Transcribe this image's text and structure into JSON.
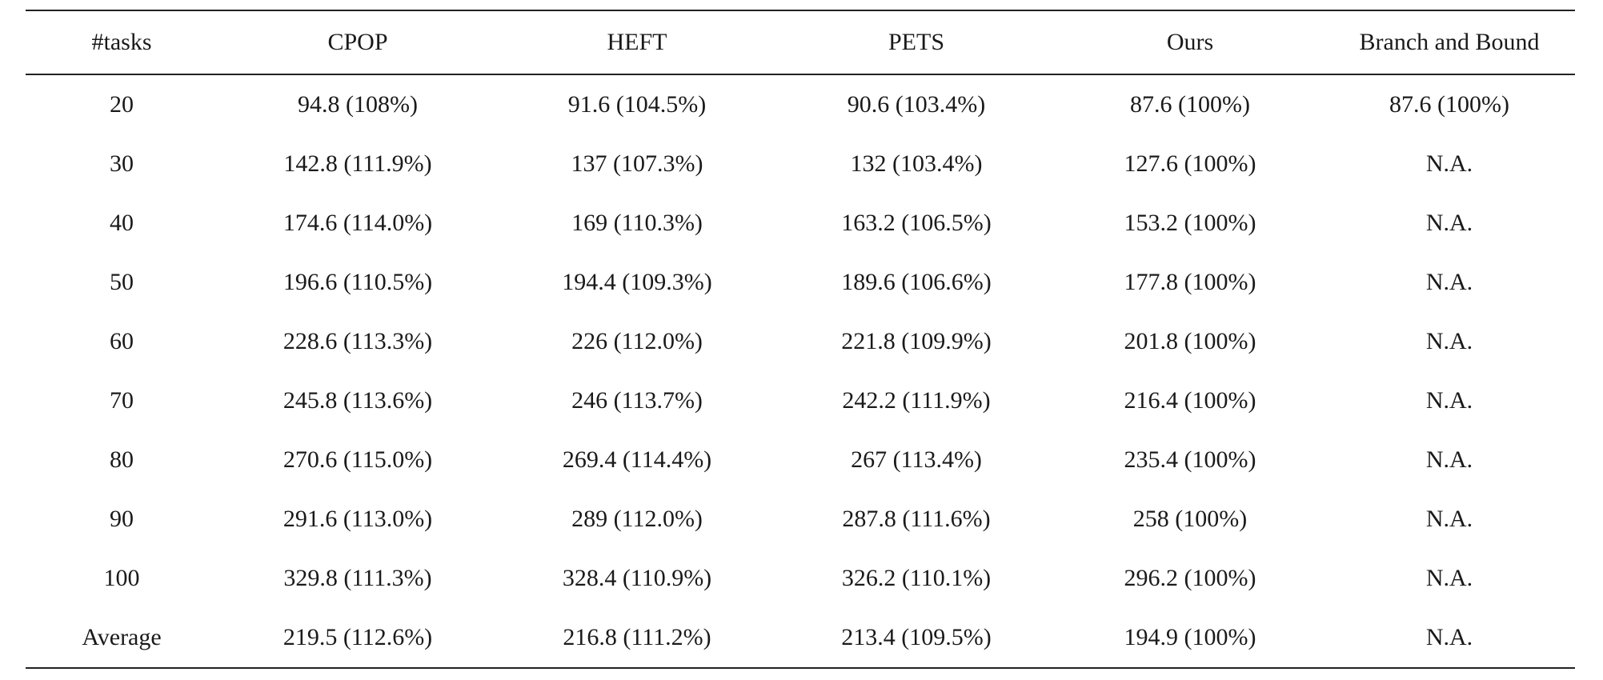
{
  "table": {
    "headers": [
      "#tasks",
      "CPOP",
      "HEFT",
      "PETS",
      "Ours",
      "Branch and Bound"
    ],
    "rows": [
      [
        "20",
        "94.8 (108%)",
        "91.6 (104.5%)",
        "90.6 (103.4%)",
        "87.6 (100%)",
        "87.6 (100%)"
      ],
      [
        "30",
        "142.8 (111.9%)",
        "137 (107.3%)",
        "132 (103.4%)",
        "127.6 (100%)",
        "N.A."
      ],
      [
        "40",
        "174.6 (114.0%)",
        "169 (110.3%)",
        "163.2 (106.5%)",
        "153.2 (100%)",
        "N.A."
      ],
      [
        "50",
        "196.6 (110.5%)",
        "194.4 (109.3%)",
        "189.6 (106.6%)",
        "177.8 (100%)",
        "N.A."
      ],
      [
        "60",
        "228.6 (113.3%)",
        "226 (112.0%)",
        "221.8 (109.9%)",
        "201.8 (100%)",
        "N.A."
      ],
      [
        "70",
        "245.8 (113.6%)",
        "246 (113.7%)",
        "242.2 (111.9%)",
        "216.4 (100%)",
        "N.A."
      ],
      [
        "80",
        "270.6 (115.0%)",
        "269.4 (114.4%)",
        "267 (113.4%)",
        "235.4 (100%)",
        "N.A."
      ],
      [
        "90",
        "291.6 (113.0%)",
        "289 (112.0%)",
        "287.8 (111.6%)",
        "258 (100%)",
        "N.A."
      ],
      [
        "100",
        "329.8 (111.3%)",
        "328.4 (110.9%)",
        "326.2 (110.1%)",
        "296.2 (100%)",
        "N.A."
      ],
      [
        "Average",
        "219.5 (112.6%)",
        "216.8 (111.2%)",
        "213.4 (109.5%)",
        "194.9 (100%)",
        "N.A."
      ]
    ]
  }
}
